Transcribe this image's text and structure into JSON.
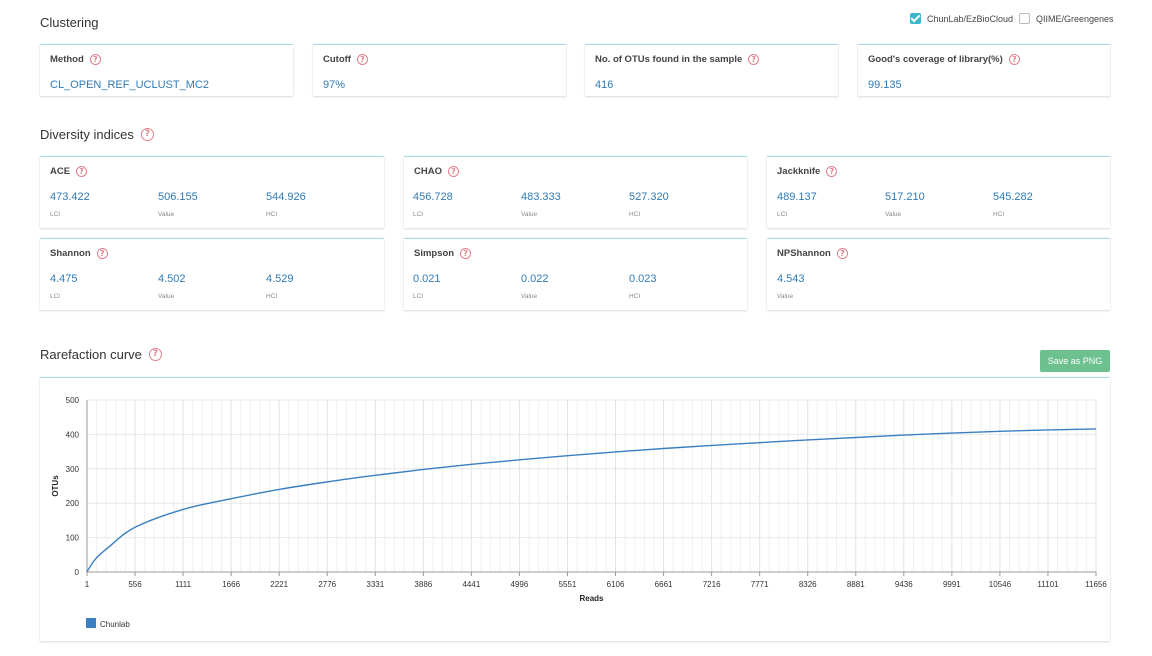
{
  "clustering": {
    "title": "Clustering",
    "sources": [
      {
        "label": "ChunLab/EzBioCloud",
        "checked": true
      },
      {
        "label": "QIIME/Greengenes",
        "checked": false
      }
    ],
    "cards": [
      {
        "label": "Method",
        "value": "CL_OPEN_REF_UCLUST_MC2"
      },
      {
        "label": "Cutoff",
        "value": "97%"
      },
      {
        "label": "No. of OTUs found in the sample",
        "value": "416"
      },
      {
        "label": "Good's coverage of library(%)",
        "value": "99.135"
      }
    ]
  },
  "diversity": {
    "title": "Diversity indices",
    "cards": [
      {
        "label": "ACE",
        "metrics": [
          {
            "value": "473.422",
            "label": "LCI"
          },
          {
            "value": "506.155",
            "label": "Value"
          },
          {
            "value": "544.926",
            "label": "HCI"
          }
        ]
      },
      {
        "label": "CHAO",
        "metrics": [
          {
            "value": "456.728",
            "label": "LCI"
          },
          {
            "value": "483.333",
            "label": "Value"
          },
          {
            "value": "527.320",
            "label": "HCI"
          }
        ]
      },
      {
        "label": "Jackknife",
        "metrics": [
          {
            "value": "489.137",
            "label": "LCI"
          },
          {
            "value": "517.210",
            "label": "Value"
          },
          {
            "value": "545.282",
            "label": "HCI"
          }
        ]
      },
      {
        "label": "Shannon",
        "metrics": [
          {
            "value": "4.475",
            "label": "LCI"
          },
          {
            "value": "4.502",
            "label": "Value"
          },
          {
            "value": "4.529",
            "label": "HCI"
          }
        ]
      },
      {
        "label": "Simpson",
        "metrics": [
          {
            "value": "0.021",
            "label": "LCI"
          },
          {
            "value": "0.022",
            "label": "Value"
          },
          {
            "value": "0.023",
            "label": "HCI"
          }
        ]
      },
      {
        "label": "NPShannon",
        "metrics": [
          {
            "value": "4.543",
            "label": "Value"
          }
        ]
      }
    ]
  },
  "rarefaction": {
    "title": "Rarefaction curve",
    "save_label": "Save as PNG"
  },
  "colors": {
    "accent": "#3cb6c9",
    "value_text": "#2f7ab7",
    "help_icon": "#e27f8b",
    "save_button": "#6cc18f",
    "series": "#3a7fc1"
  },
  "chart_data": {
    "type": "line",
    "xlabel": "Reads",
    "ylabel": "OTUs",
    "xlim": [
      1,
      11656
    ],
    "ylim": [
      0,
      500
    ],
    "x_ticks": [
      "1",
      "556",
      "1111",
      "1666",
      "2221",
      "2776",
      "3331",
      "3886",
      "4441",
      "4996",
      "5551",
      "6106",
      "6661",
      "7216",
      "7771",
      "8326",
      "8881",
      "9436",
      "9991",
      "10546",
      "11101",
      "11656"
    ],
    "y_ticks": [
      "0",
      "100",
      "200",
      "300",
      "400",
      "500"
    ],
    "grid": true,
    "legend_position": "bottom-left",
    "series": [
      {
        "name": "Chunlab",
        "x": [
          1,
          100,
          250,
          556,
          1111,
          1666,
          2221,
          2776,
          3331,
          3886,
          4441,
          4996,
          5551,
          6106,
          6661,
          7216,
          7771,
          8326,
          8881,
          9436,
          9991,
          10546,
          11101,
          11656
        ],
        "y": [
          1,
          38,
          72,
          130,
          182,
          213,
          240,
          262,
          281,
          298,
          313,
          326,
          338,
          349,
          359,
          368,
          376,
          384,
          391,
          398,
          404,
          409,
          413,
          416
        ]
      }
    ]
  }
}
